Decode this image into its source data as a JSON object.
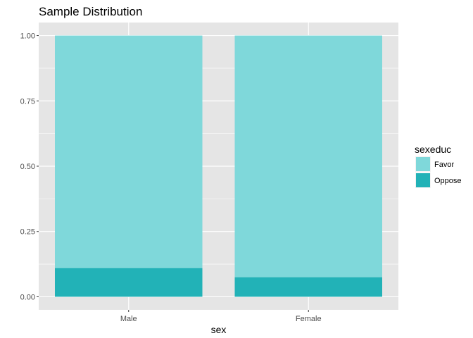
{
  "chart_data": {
    "type": "bar",
    "stacked": true,
    "title": "Sample Distribution",
    "xlabel": "sex",
    "ylabel": "",
    "categories": [
      "Male",
      "Female"
    ],
    "series": [
      {
        "name": "Favor",
        "values": [
          0.89,
          0.925
        ],
        "color": "#7fd8da"
      },
      {
        "name": "Oppose",
        "values": [
          0.11,
          0.075
        ],
        "color": "#22b2b7"
      }
    ],
    "ylim": [
      -0.05,
      1.05
    ],
    "yticks": [
      0.0,
      0.25,
      0.5,
      0.75,
      1.0
    ],
    "ytick_labels": [
      "0.00",
      "0.25",
      "0.50",
      "0.75",
      "1.00"
    ],
    "grid": true,
    "legend": {
      "title": "sexeduc",
      "position": "right"
    },
    "colors": {
      "panel_background": "#e5e5e5",
      "grid": "#ffffff"
    }
  }
}
